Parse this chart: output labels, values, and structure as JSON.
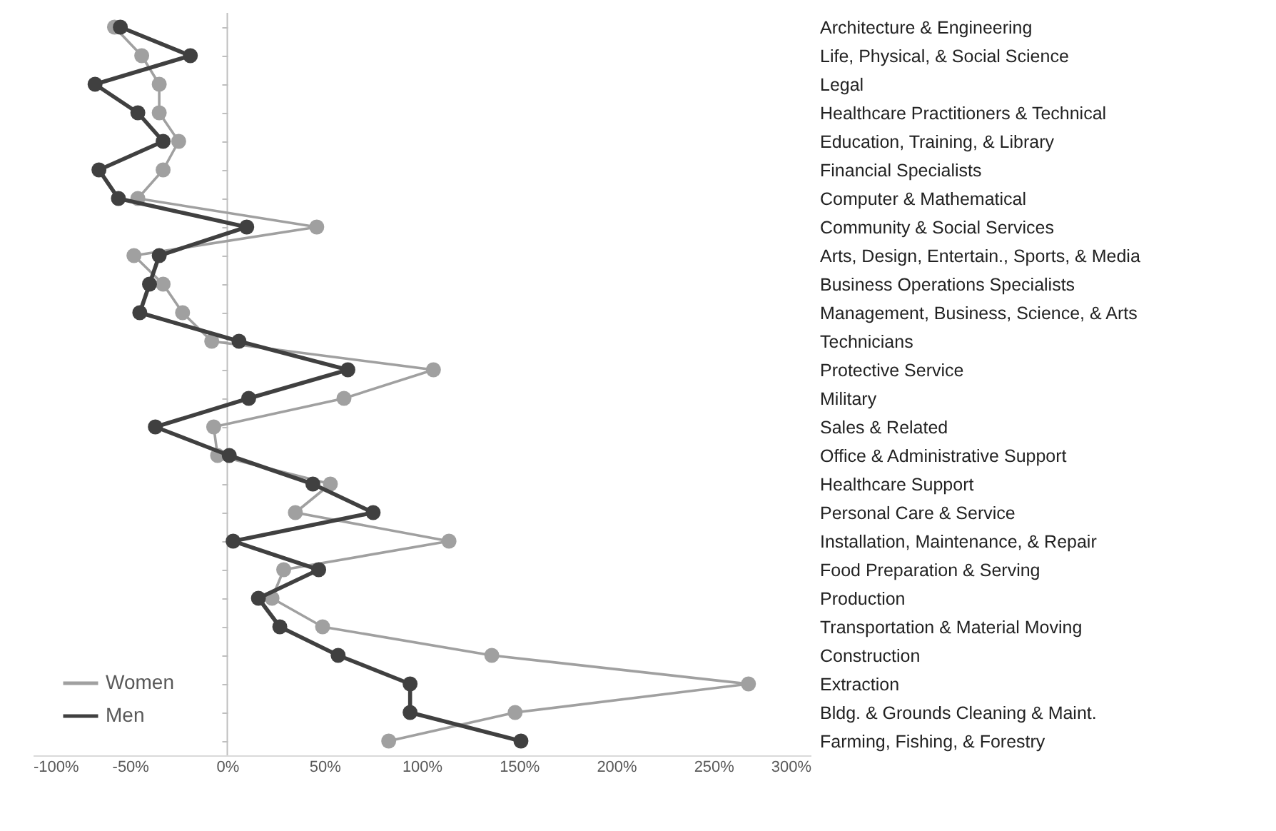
{
  "chart_data": {
    "type": "line",
    "orientation": "horizontal",
    "marker": "circle",
    "legend": "bottom left",
    "grid": false,
    "categories": [
      "Architecture & Engineering",
      "Life, Physical, & Social Science",
      "Legal",
      "Healthcare Practitioners & Technical",
      "Education, Training, & Library",
      "Financial Specialists",
      "Computer & Mathematical",
      "Community & Social Services",
      "Arts, Design, Entertain., Sports, & Media",
      "Business Operations Specialists",
      "Management,  Business, Science, & Arts",
      "Technicians",
      "Protective Service",
      "Military",
      "Sales & Related",
      "Office & Administrative Support",
      "Healthcare Support",
      "Personal Care & Service",
      "Installation, Maintenance, & Repair",
      "Food Preparation & Serving",
      "Production",
      "Transportation & Material Moving",
      "Construction",
      "Extraction",
      "Bldg. & Grounds Cleaning & Maint.",
      "Farming, Fishing, & Forestry"
    ],
    "series": [
      {
        "name": "Women",
        "color": "#a0a0a0",
        "values": [
          -0.58,
          -0.44,
          -0.35,
          -0.35,
          -0.25,
          -0.33,
          -0.46,
          0.46,
          -0.48,
          -0.33,
          -0.23,
          -0.08,
          1.06,
          0.6,
          -0.07,
          -0.05,
          0.53,
          0.35,
          1.14,
          0.29,
          0.23,
          0.49,
          1.36,
          2.68,
          1.48,
          0.83
        ]
      },
      {
        "name": "Men",
        "color": "#404040",
        "values": [
          -0.55,
          -0.19,
          -0.68,
          -0.46,
          -0.33,
          -0.66,
          -0.56,
          0.1,
          -0.35,
          -0.4,
          -0.45,
          0.06,
          0.62,
          0.11,
          -0.37,
          0.01,
          0.44,
          0.75,
          0.03,
          0.47,
          0.16,
          0.27,
          0.57,
          0.94,
          0.94,
          1.51
        ]
      }
    ],
    "ref_lines": [
      {
        "axis": "x",
        "value": 0,
        "color": "#bfbfbf"
      }
    ],
    "xlim": [
      -1,
      3
    ],
    "xticks": [
      {
        "value": -1,
        "label": "-100%"
      },
      {
        "value": -0.5,
        "label": "-50%"
      },
      {
        "value": 0,
        "label": "0%"
      },
      {
        "value": 0.5,
        "label": "50%"
      },
      {
        "value": 1,
        "label": "100%"
      },
      {
        "value": 1.5,
        "label": "150%"
      },
      {
        "value": 2,
        "label": "200%"
      },
      {
        "value": 2.5,
        "label": "250%"
      },
      {
        "value": 3,
        "label": "300%"
      }
    ]
  }
}
